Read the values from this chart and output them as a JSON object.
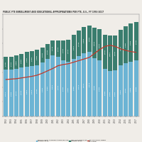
{
  "years": [
    1992,
    1993,
    1994,
    1995,
    1996,
    1997,
    1998,
    1999,
    2000,
    2001,
    2002,
    2003,
    2004,
    2005,
    2006,
    2007,
    2008,
    2009,
    2010,
    2011,
    2012,
    2013,
    2014,
    2015,
    2016,
    2017
  ],
  "edu_approp": [
    6372,
    6398,
    6478,
    6704,
    6818,
    6918,
    7048,
    7433,
    7857,
    8318,
    8134,
    7700,
    7487,
    7851,
    8278,
    8679,
    8878,
    8009,
    7639,
    6499,
    6232,
    6335,
    6987,
    7304,
    7506,
    7645
  ],
  "net_tuition": [
    1780,
    1763,
    1887,
    1894,
    2022,
    2053,
    2053,
    2040,
    2048,
    2048,
    2244,
    2700,
    3042,
    3310,
    3448,
    3568,
    3590,
    4135,
    4286,
    4700,
    4817,
    4750,
    4860,
    5090,
    5208,
    5249
  ],
  "enrollment": [
    9.4,
    9.5,
    9.6,
    9.8,
    10.0,
    10.2,
    10.5,
    11.0,
    11.6,
    12.2,
    12.9,
    13.2,
    13.4,
    13.8,
    14.2,
    14.6,
    15.0,
    16.0,
    17.0,
    17.8,
    18.1,
    17.8,
    17.2,
    16.8,
    16.5,
    16.3
  ],
  "bar_color_blue": "#6cb4d4",
  "bar_color_green": "#3a7d6e",
  "line_color": "#c0392b",
  "title": "PUBLIC FTE ENROLLMENT AND EDUCATIONAL APPROPRIATIONS PER FTE, U.S., FY 1992-2017",
  "legend_labels": [
    "EDUCATIONAL APPROPRIATIONS PER FTE\n(CONSTANT $)",
    "NET TUITION PER FTE\n(CONSTANT $)",
    "NET FTE ENROLLMENT\n(MILLIONS)"
  ],
  "background_color": "#f0ede8",
  "ylim_left": [
    0,
    14000
  ],
  "ylim_right": [
    0,
    26
  ]
}
